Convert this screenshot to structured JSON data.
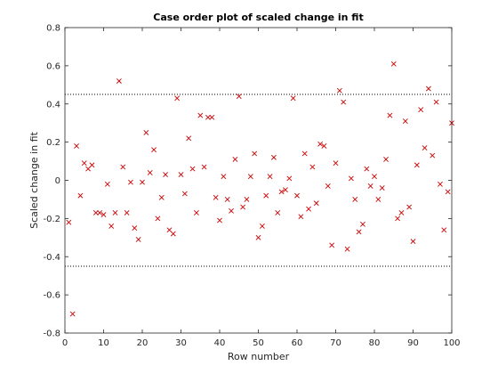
{
  "chart_data": {
    "type": "scatter",
    "title": "Case order plot of scaled change in fit",
    "xlabel": "Row number",
    "ylabel": "Scaled change in fit",
    "xlim": [
      0,
      100
    ],
    "ylim": [
      -0.8,
      0.8
    ],
    "xticks": [
      0,
      10,
      20,
      30,
      40,
      50,
      60,
      70,
      80,
      90,
      100
    ],
    "yticks": [
      -0.8,
      -0.6,
      -0.4,
      -0.2,
      0,
      0.2,
      0.4,
      0.6,
      0.8
    ],
    "xtick_labels": [
      "0",
      "10",
      "20",
      "30",
      "40",
      "50",
      "60",
      "70",
      "80",
      "90",
      "100"
    ],
    "ytick_labels": [
      "-0.8",
      "-0.6",
      "-0.4",
      "-0.2",
      "0",
      "0.2",
      "0.4",
      "0.6",
      "0.8"
    ],
    "grid": false,
    "marker": "x",
    "marker_color": "#cc0000",
    "reference_lines": [
      0.45,
      -0.45
    ],
    "series": [
      {
        "x": [
          1,
          2,
          3,
          4,
          5,
          6,
          7,
          8,
          9,
          10,
          11,
          12,
          13,
          14,
          15,
          16,
          17,
          18,
          19,
          20,
          21,
          22,
          23,
          24,
          25,
          26,
          27,
          28,
          29,
          30,
          31,
          32,
          33,
          34,
          35,
          36,
          37,
          38,
          39,
          40,
          41,
          42,
          43,
          44,
          45,
          46,
          47,
          48,
          49,
          50,
          51,
          52,
          53,
          54,
          55,
          56,
          57,
          58,
          59,
          60,
          61,
          62,
          63,
          64,
          65,
          66,
          67,
          68,
          69,
          70,
          71,
          72,
          73,
          74,
          75,
          76,
          77,
          78,
          79,
          80,
          81,
          82,
          83,
          84,
          85,
          86,
          87,
          88,
          89,
          90,
          91,
          92,
          93,
          94,
          95,
          96,
          97,
          98,
          99,
          100
        ],
        "y": [
          -0.22,
          -0.7,
          0.18,
          -0.08,
          0.09,
          0.06,
          0.08,
          -0.17,
          -0.17,
          -0.18,
          -0.02,
          -0.24,
          -0.17,
          0.52,
          0.07,
          -0.17,
          -0.01,
          -0.25,
          -0.31,
          -0.01,
          0.25,
          0.04,
          0.16,
          -0.2,
          -0.09,
          0.03,
          -0.26,
          -0.28,
          0.43,
          0.03,
          -0.07,
          0.22,
          0.06,
          -0.17,
          0.34,
          0.07,
          0.33,
          0.33,
          -0.09,
          -0.21,
          0.02,
          -0.1,
          -0.16,
          0.11,
          0.44,
          -0.14,
          -0.1,
          0.02,
          0.14,
          -0.3,
          -0.24,
          -0.08,
          0.02,
          0.12,
          -0.17,
          -0.06,
          -0.05,
          0.01,
          0.43,
          -0.08,
          -0.19,
          0.14,
          -0.15,
          0.07,
          -0.12,
          0.19,
          0.18,
          -0.03,
          -0.34,
          0.09,
          0.47,
          0.41,
          -0.36,
          0.01,
          -0.1,
          -0.27,
          -0.23,
          0.06,
          -0.03,
          0.02,
          -0.1,
          -0.04,
          0.11,
          0.34,
          0.61,
          -0.2,
          -0.17,
          0.31,
          -0.14,
          -0.32,
          0.08,
          0.37,
          0.17,
          0.48,
          0.13,
          0.41,
          -0.02,
          -0.26,
          -0.06,
          0.3
        ]
      }
    ]
  }
}
